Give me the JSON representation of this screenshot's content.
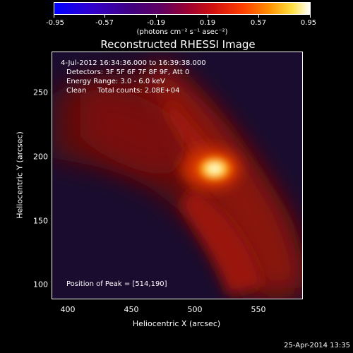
{
  "colorbar": {
    "ticks": [
      "-0.95",
      "-0.57",
      "-0.19",
      "0.19",
      "0.57",
      "0.95"
    ],
    "units": "(photons cm⁻² s⁻¹ asec⁻²)"
  },
  "title": "Reconstructed RHESSI Image",
  "info": {
    "time_range": "4-Jul-2012 16:34:36.000 to 16:39:38.000",
    "detectors": "Detectors: 3F 5F 6F 7F 8F 9F, Att 0",
    "energy": "Energy Range: 3.0 - 6.0 keV",
    "clean": "Clean     Total counts: 2.08E+04",
    "peak": "Position of Peak = [514,190]"
  },
  "axes": {
    "xlabel": "Heliocentric X (arcsec)",
    "ylabel": "Heliocentric Y (arcsec)",
    "xticks": [
      "400",
      "450",
      "500",
      "550"
    ],
    "yticks": [
      "250",
      "200",
      "150",
      "100"
    ]
  },
  "footer": {
    "timestamp": "25-Apr-2014 13:35"
  },
  "colors": {
    "background": "#000000",
    "hot": "#ffffff",
    "peak": "#ffcc00"
  }
}
